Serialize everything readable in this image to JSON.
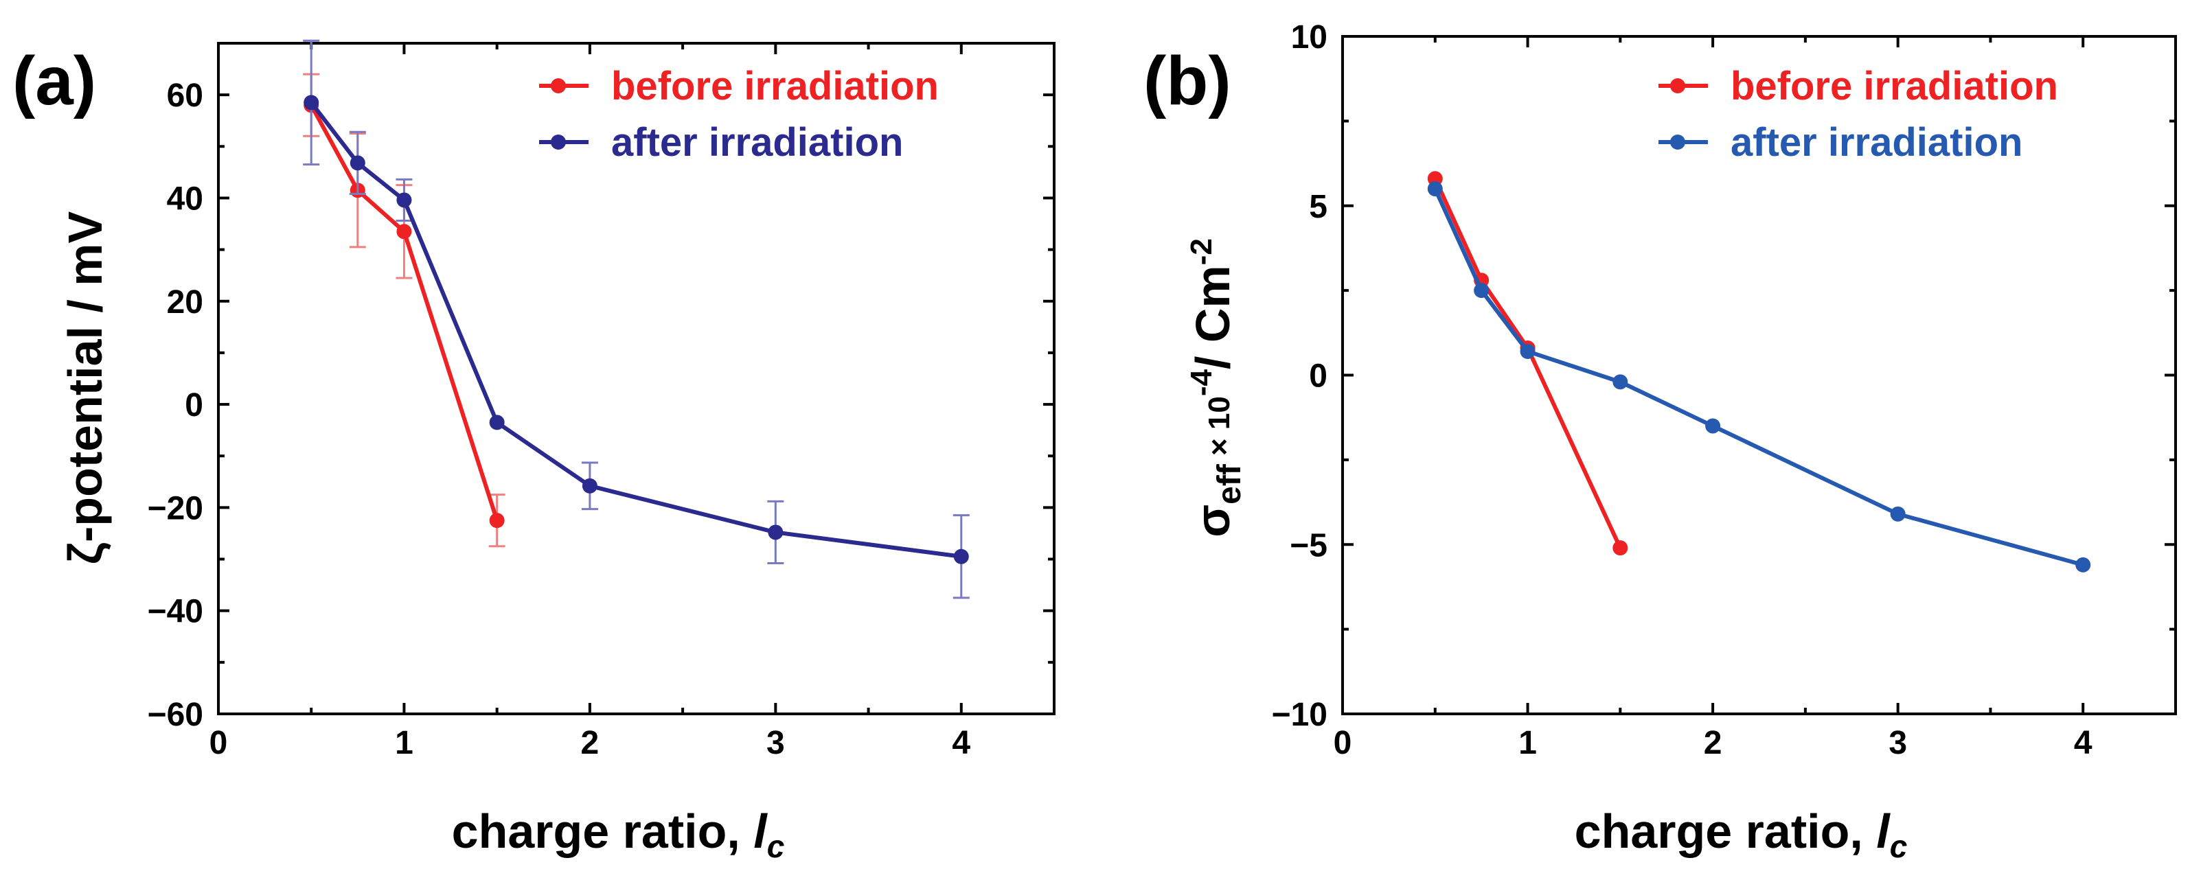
{
  "chart_data": [
    {
      "type": "line",
      "panel_label": "(a)",
      "xlabel": "charge ratio, ",
      "xlabel_italic": "l",
      "xlabel_sub": "c",
      "ylabel": "ζ-potential / mV",
      "xlim": [
        0,
        4.5
      ],
      "ylim": [
        -60,
        70
      ],
      "xticks": [
        0,
        1,
        2,
        3,
        4
      ],
      "yticks": [
        60,
        40,
        20,
        0,
        -20,
        -40,
        -60
      ],
      "ytick_labels": [
        "60",
        "40",
        "20",
        "0",
        "−20",
        "−40",
        "−60"
      ],
      "legend_position": "top-right",
      "series": [
        {
          "name": "before irradiation",
          "color": "#ee2222",
          "x": [
            0.5,
            0.75,
            1.0,
            1.5
          ],
          "y": [
            58.0,
            41.5,
            33.5,
            -22.5
          ],
          "yerr": [
            6.0,
            11.0,
            9.0,
            5.0
          ]
        },
        {
          "name": "after irradiation",
          "color": "#2b2b8f",
          "x": [
            0.5,
            0.75,
            1.0,
            1.5,
            2.0,
            3.0,
            4.0
          ],
          "y": [
            58.5,
            46.8,
            39.6,
            -3.5,
            -15.8,
            -24.8,
            -29.5
          ],
          "yerr": [
            12.0,
            6.0,
            4.0,
            0,
            4.5,
            6.0,
            8.0
          ]
        }
      ]
    },
    {
      "type": "line",
      "panel_label": "(b)",
      "xlabel": "charge ratio, ",
      "xlabel_italic": "l",
      "xlabel_sub": "c",
      "ylabel_main": "σ",
      "ylabel_sub": "eff",
      "ylabel_mid": " × 10",
      "ylabel_sup1": "-4",
      "ylabel_unit": "/ Cm",
      "ylabel_sup2": "-2",
      "xlim": [
        0,
        4.5
      ],
      "ylim": [
        -10,
        10
      ],
      "xticks": [
        0,
        1,
        2,
        3,
        4
      ],
      "yticks": [
        10,
        5,
        0,
        -5,
        -10
      ],
      "ytick_labels": [
        "10",
        "5",
        "0",
        "−5",
        "−10"
      ],
      "legend_position": "top-right",
      "series": [
        {
          "name": "before irradiation",
          "color": "#ee2222",
          "x": [
            0.5,
            0.75,
            1.0,
            1.5
          ],
          "y": [
            5.8,
            2.8,
            0.8,
            -5.1
          ]
        },
        {
          "name": "after irradiation",
          "color": "#2659b0",
          "x": [
            0.5,
            0.75,
            1.0,
            1.5,
            2.0,
            3.0,
            4.0
          ],
          "y": [
            5.5,
            2.5,
            0.7,
            -0.2,
            -1.5,
            -4.1,
            -5.6
          ]
        }
      ]
    }
  ]
}
